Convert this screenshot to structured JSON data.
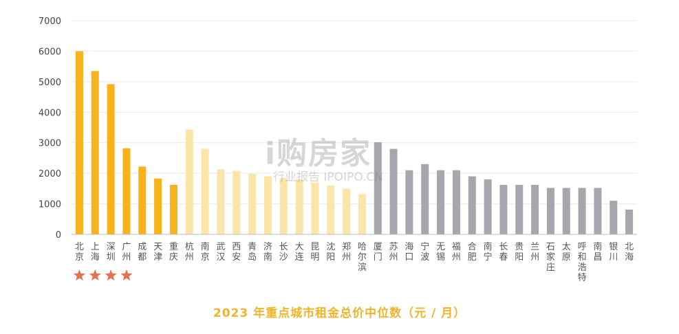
{
  "chart_data": {
    "type": "bar",
    "title": "2023 年重点城市租金总价中位数（元 / 月）",
    "ylim": [
      0,
      7000
    ],
    "yticks": [
      0,
      1000,
      2000,
      3000,
      4000,
      5000,
      6000,
      7000
    ],
    "grid": true,
    "categories": [
      "北京",
      "上海",
      "深圳",
      "广州",
      "成都",
      "天津",
      "重庆",
      "杭州",
      "南京",
      "武汉",
      "西安",
      "青岛",
      "济南",
      "长沙",
      "大连",
      "昆明",
      "沈阳",
      "郑州",
      "哈尔滨",
      "厦门",
      "苏州",
      "海口",
      "宁波",
      "无锡",
      "福州",
      "合肥",
      "南宁",
      "长春",
      "贵阳",
      "兰州",
      "石家庄",
      "太原",
      "呼和浩特",
      "南昌",
      "银川",
      "北海"
    ],
    "values": [
      6000,
      5350,
      4920,
      2820,
      2220,
      1830,
      1620,
      3430,
      2800,
      2130,
      2080,
      1980,
      1900,
      1850,
      1800,
      1700,
      1600,
      1500,
      1320,
      3020,
      2800,
      2100,
      2300,
      2100,
      2100,
      1900,
      1800,
      1620,
      1620,
      1620,
      1520,
      1520,
      1520,
      1520,
      1100,
      810
    ],
    "tiers": [
      1,
      1,
      1,
      1,
      2,
      2,
      2,
      3,
      3,
      3,
      3,
      3,
      3,
      3,
      3,
      3,
      3,
      3,
      3,
      4,
      4,
      4,
      4,
      4,
      4,
      4,
      4,
      4,
      4,
      4,
      4,
      4,
      4,
      4,
      4,
      4
    ],
    "tier_colors": {
      "1": "#f7b21c",
      "2": "#f7b21c",
      "3": "#fce5a8",
      "4": "#a6a6ac"
    },
    "starred": [
      "北京",
      "上海",
      "深圳",
      "广州"
    ],
    "star_color": "#e5724f"
  },
  "watermark": {
    "brand": "i购房家",
    "sub": "行业报告 IPOIPO.CN"
  }
}
